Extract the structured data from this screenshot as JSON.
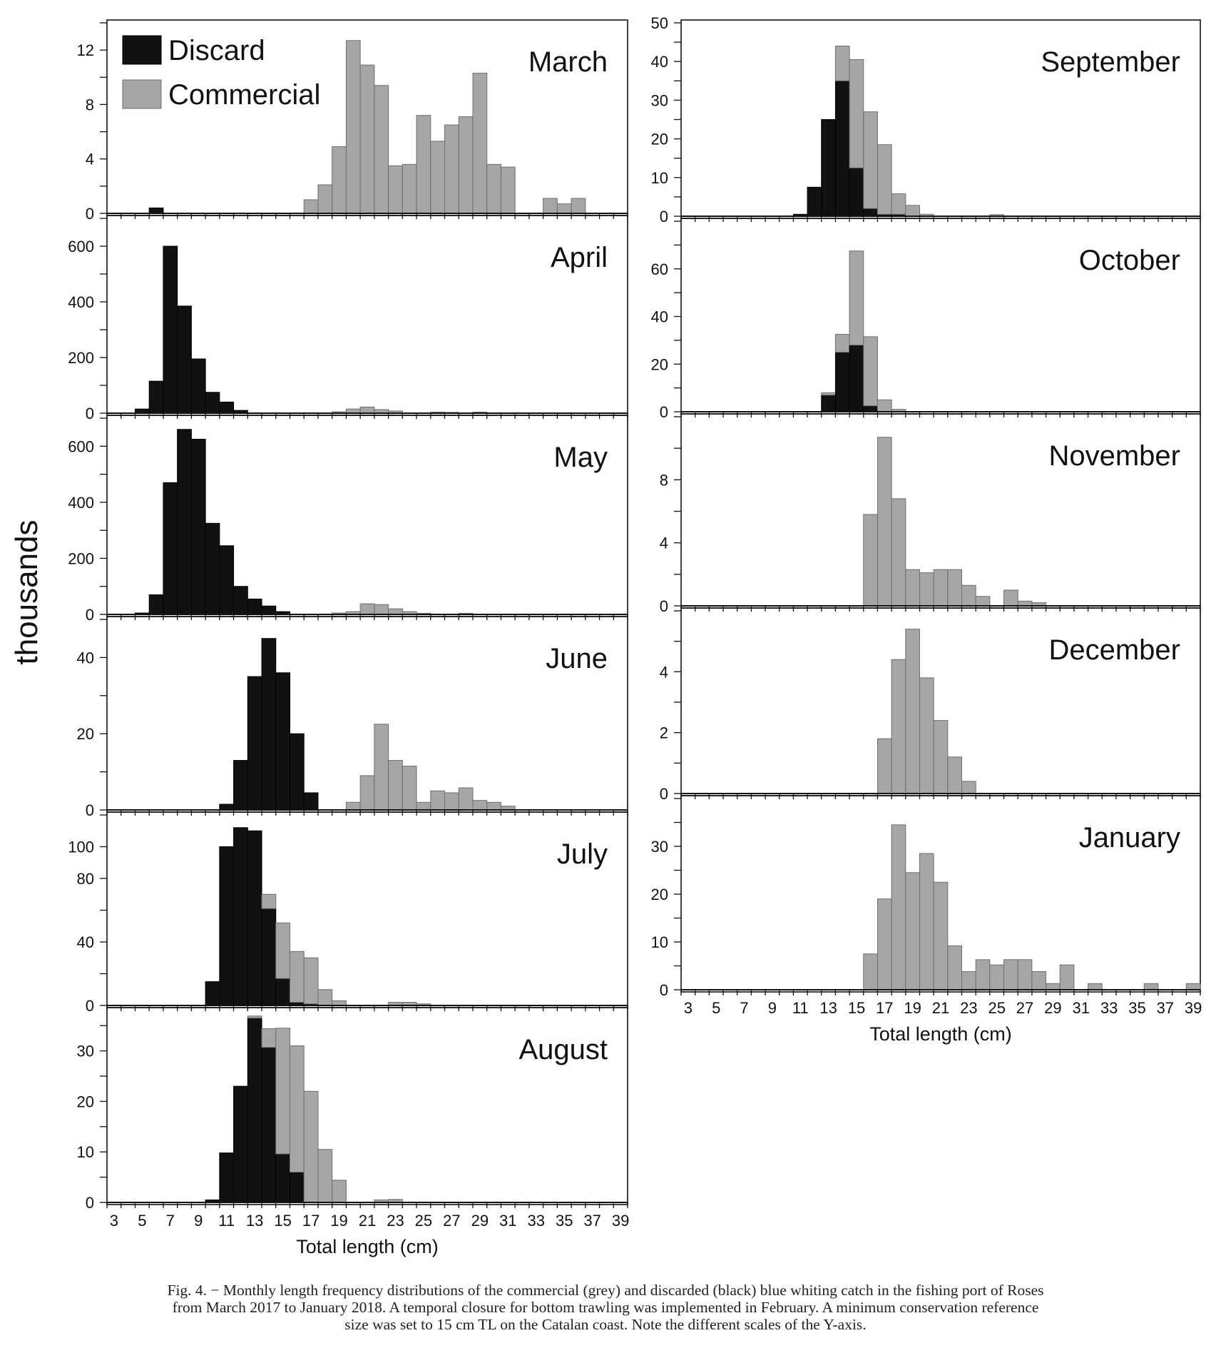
{
  "figure": {
    "ylabel": "thousands",
    "legend": [
      {
        "label": "Discard",
        "color": "#111111"
      },
      {
        "label": "Commercial",
        "color": "#a6a6a6"
      }
    ],
    "caption_lines": [
      "Fig. 4. − Monthly length frequency distributions of the commercial (grey) and discarded (black) blue whiting catch in the fishing port of Roses",
      "from March 2017 to January 2018. A temporal closure for bottom trawling was implemented in February. A minimum conservation reference",
      "size was set to 15 cm TL on the Catalan coast. Note the different scales of the Y-axis."
    ]
  },
  "chart_data": [
    {
      "type": "bar",
      "title": "March",
      "xlabel": "",
      "ylim": [
        0,
        14
      ],
      "yticks": [
        0,
        4,
        8,
        12
      ],
      "x_range": [
        3,
        39
      ],
      "series": [
        {
          "name": "Discard",
          "values": [
            {
              "x": 6,
              "y": 0.4
            }
          ]
        },
        {
          "name": "Commercial",
          "values": [
            {
              "x": 17,
              "y": 1.0
            },
            {
              "x": 18,
              "y": 2.1
            },
            {
              "x": 19,
              "y": 4.9
            },
            {
              "x": 20,
              "y": 12.7
            },
            {
              "x": 21,
              "y": 10.9
            },
            {
              "x": 22,
              "y": 9.4
            },
            {
              "x": 23,
              "y": 3.5
            },
            {
              "x": 24,
              "y": 3.6
            },
            {
              "x": 25,
              "y": 7.2
            },
            {
              "x": 26,
              "y": 5.3
            },
            {
              "x": 27,
              "y": 6.5
            },
            {
              "x": 28,
              "y": 7.1
            },
            {
              "x": 29,
              "y": 10.3
            },
            {
              "x": 30,
              "y": 3.6
            },
            {
              "x": 31,
              "y": 3.4
            },
            {
              "x": 34,
              "y": 1.1
            },
            {
              "x": 35,
              "y": 0.7
            },
            {
              "x": 36,
              "y": 1.1
            }
          ]
        }
      ]
    },
    {
      "type": "bar",
      "title": "April",
      "xlabel": "",
      "ylim": [
        0,
        700
      ],
      "yticks": [
        0,
        200,
        400,
        600
      ],
      "x_range": [
        3,
        39
      ],
      "series": [
        {
          "name": "Discard",
          "values": [
            {
              "x": 5,
              "y": 15
            },
            {
              "x": 6,
              "y": 115
            },
            {
              "x": 7,
              "y": 600
            },
            {
              "x": 8,
              "y": 385
            },
            {
              "x": 9,
              "y": 195
            },
            {
              "x": 10,
              "y": 75
            },
            {
              "x": 11,
              "y": 40
            },
            {
              "x": 12,
              "y": 10
            }
          ]
        },
        {
          "name": "Commercial",
          "values": [
            {
              "x": 19,
              "y": 5
            },
            {
              "x": 20,
              "y": 15
            },
            {
              "x": 21,
              "y": 22
            },
            {
              "x": 22,
              "y": 13
            },
            {
              "x": 23,
              "y": 8
            },
            {
              "x": 26,
              "y": 4
            },
            {
              "x": 27,
              "y": 3
            },
            {
              "x": 29,
              "y": 4
            }
          ]
        }
      ]
    },
    {
      "type": "bar",
      "title": "May",
      "xlabel": "",
      "ylim": [
        0,
        700
      ],
      "yticks": [
        0,
        200,
        400,
        600
      ],
      "x_range": [
        3,
        39
      ],
      "series": [
        {
          "name": "Discard",
          "values": [
            {
              "x": 5,
              "y": 5
            },
            {
              "x": 6,
              "y": 70
            },
            {
              "x": 7,
              "y": 470
            },
            {
              "x": 8,
              "y": 660
            },
            {
              "x": 9,
              "y": 625
            },
            {
              "x": 10,
              "y": 325
            },
            {
              "x": 11,
              "y": 245
            },
            {
              "x": 12,
              "y": 100
            },
            {
              "x": 13,
              "y": 55
            },
            {
              "x": 14,
              "y": 30
            },
            {
              "x": 15,
              "y": 10
            }
          ]
        },
        {
          "name": "Commercial",
          "values": [
            {
              "x": 19,
              "y": 5
            },
            {
              "x": 20,
              "y": 10
            },
            {
              "x": 21,
              "y": 38
            },
            {
              "x": 22,
              "y": 35
            },
            {
              "x": 23,
              "y": 20
            },
            {
              "x": 24,
              "y": 10
            },
            {
              "x": 25,
              "y": 4
            },
            {
              "x": 28,
              "y": 4
            }
          ]
        }
      ]
    },
    {
      "type": "bar",
      "title": "June",
      "xlabel": "",
      "ylim": [
        0,
        50
      ],
      "yticks": [
        0,
        20,
        40
      ],
      "x_range": [
        3,
        39
      ],
      "series": [
        {
          "name": "Discard",
          "values": [
            {
              "x": 11,
              "y": 1.5
            },
            {
              "x": 12,
              "y": 13
            },
            {
              "x": 13,
              "y": 35
            },
            {
              "x": 14,
              "y": 45
            },
            {
              "x": 15,
              "y": 36
            },
            {
              "x": 16,
              "y": 20
            },
            {
              "x": 17,
              "y": 4.5
            }
          ]
        },
        {
          "name": "Commercial",
          "values": [
            {
              "x": 20,
              "y": 2
            },
            {
              "x": 21,
              "y": 9
            },
            {
              "x": 22,
              "y": 22.5
            },
            {
              "x": 23,
              "y": 13
            },
            {
              "x": 24,
              "y": 11.5
            },
            {
              "x": 25,
              "y": 2
            },
            {
              "x": 26,
              "y": 5
            },
            {
              "x": 27,
              "y": 4.5
            },
            {
              "x": 28,
              "y": 5.8
            },
            {
              "x": 29,
              "y": 2.5
            },
            {
              "x": 30,
              "y": 2
            },
            {
              "x": 31,
              "y": 1
            }
          ]
        }
      ]
    },
    {
      "type": "bar",
      "title": "July",
      "xlabel": "",
      "ylim": [
        0,
        120
      ],
      "yticks": [
        0,
        40,
        80,
        100
      ],
      "x_range": [
        3,
        39
      ],
      "series": [
        {
          "name": "Discard",
          "values": [
            {
              "x": 10,
              "y": 15
            },
            {
              "x": 11,
              "y": 100
            },
            {
              "x": 12,
              "y": 112
            },
            {
              "x": 13,
              "y": 110
            },
            {
              "x": 14,
              "y": 61
            },
            {
              "x": 15,
              "y": 17
            },
            {
              "x": 16,
              "y": 2
            },
            {
              "x": 17,
              "y": 1
            }
          ]
        },
        {
          "name": "Commercial",
          "values": [
            {
              "x": 14,
              "y": 9
            },
            {
              "x": 15,
              "y": 35
            },
            {
              "x": 16,
              "y": 32
            },
            {
              "x": 17,
              "y": 29
            },
            {
              "x": 18,
              "y": 10
            },
            {
              "x": 19,
              "y": 3
            },
            {
              "x": 23,
              "y": 2
            },
            {
              "x": 24,
              "y": 2
            },
            {
              "x": 25,
              "y": 1
            }
          ]
        }
      ]
    },
    {
      "type": "bar",
      "title": "August",
      "xlabel": "Total length (cm)",
      "ylim": [
        0,
        38
      ],
      "yticks": [
        0,
        10,
        20,
        30
      ],
      "x_range": [
        3,
        39
      ],
      "xticks": [
        3,
        5,
        7,
        9,
        11,
        13,
        15,
        17,
        19,
        21,
        23,
        25,
        27,
        29,
        31,
        33,
        35,
        37,
        39
      ],
      "series": [
        {
          "name": "Discard",
          "values": [
            {
              "x": 10,
              "y": 0.5
            },
            {
              "x": 11,
              "y": 9.8
            },
            {
              "x": 12,
              "y": 23
            },
            {
              "x": 13,
              "y": 36.5
            },
            {
              "x": 14,
              "y": 30.7
            },
            {
              "x": 15,
              "y": 9.6
            },
            {
              "x": 16,
              "y": 6
            }
          ]
        },
        {
          "name": "Commercial",
          "values": [
            {
              "x": 13,
              "y": 0.4
            },
            {
              "x": 14,
              "y": 3.7
            },
            {
              "x": 15,
              "y": 24.9
            },
            {
              "x": 16,
              "y": 25
            },
            {
              "x": 17,
              "y": 22
            },
            {
              "x": 18,
              "y": 10.5
            },
            {
              "x": 19,
              "y": 4.4
            },
            {
              "x": 22,
              "y": 0.5
            },
            {
              "x": 23,
              "y": 0.6
            }
          ]
        }
      ]
    },
    {
      "type": "bar",
      "title": "September",
      "xlabel": "",
      "ylim": [
        0,
        50
      ],
      "yticks": [
        0,
        10,
        20,
        30,
        40,
        50
      ],
      "x_range": [
        3,
        39
      ],
      "series": [
        {
          "name": "Discard",
          "values": [
            {
              "x": 11,
              "y": 0.5
            },
            {
              "x": 12,
              "y": 7.5
            },
            {
              "x": 13,
              "y": 25
            },
            {
              "x": 14,
              "y": 35
            },
            {
              "x": 15,
              "y": 12.5
            },
            {
              "x": 16,
              "y": 2
            },
            {
              "x": 17,
              "y": 0.5
            },
            {
              "x": 18,
              "y": 0.5
            }
          ]
        },
        {
          "name": "Commercial",
          "values": [
            {
              "x": 14,
              "y": 9
            },
            {
              "x": 15,
              "y": 28
            },
            {
              "x": 16,
              "y": 25
            },
            {
              "x": 17,
              "y": 18
            },
            {
              "x": 18,
              "y": 5.3
            },
            {
              "x": 19,
              "y": 2.8
            },
            {
              "x": 20,
              "y": 0.5
            },
            {
              "x": 25,
              "y": 0.4
            }
          ]
        }
      ]
    },
    {
      "type": "bar",
      "title": "October",
      "xlabel": "",
      "ylim": [
        0,
        80
      ],
      "yticks": [
        0,
        20,
        40,
        60
      ],
      "x_range": [
        3,
        39
      ],
      "series": [
        {
          "name": "Discard",
          "values": [
            {
              "x": 13,
              "y": 7
            },
            {
              "x": 14,
              "y": 25
            },
            {
              "x": 15,
              "y": 28
            },
            {
              "x": 16,
              "y": 2.5
            }
          ]
        },
        {
          "name": "Commercial",
          "values": [
            {
              "x": 13,
              "y": 1
            },
            {
              "x": 14,
              "y": 7.5
            },
            {
              "x": 15,
              "y": 39.5
            },
            {
              "x": 16,
              "y": 29
            },
            {
              "x": 17,
              "y": 5
            },
            {
              "x": 18,
              "y": 1
            }
          ]
        }
      ]
    },
    {
      "type": "bar",
      "title": "November",
      "xlabel": "",
      "ylim": [
        0,
        12
      ],
      "yticks": [
        0,
        4,
        8
      ],
      "x_range": [
        3,
        39
      ],
      "series": [
        {
          "name": "Discard",
          "values": []
        },
        {
          "name": "Commercial",
          "values": [
            {
              "x": 16,
              "y": 5.8
            },
            {
              "x": 17,
              "y": 10.7
            },
            {
              "x": 18,
              "y": 6.8
            },
            {
              "x": 19,
              "y": 2.3
            },
            {
              "x": 20,
              "y": 2.1
            },
            {
              "x": 21,
              "y": 2.3
            },
            {
              "x": 22,
              "y": 2.3
            },
            {
              "x": 23,
              "y": 1.3
            },
            {
              "x": 24,
              "y": 0.6
            },
            {
              "x": 26,
              "y": 1.0
            },
            {
              "x": 27,
              "y": 0.3
            },
            {
              "x": 28,
              "y": 0.2
            }
          ]
        }
      ]
    },
    {
      "type": "bar",
      "title": "December",
      "xlabel": "",
      "ylim": [
        0,
        6
      ],
      "yticks": [
        0,
        2,
        4
      ],
      "x_range": [
        3,
        39
      ],
      "series": [
        {
          "name": "Discard",
          "values": []
        },
        {
          "name": "Commercial",
          "values": [
            {
              "x": 17,
              "y": 1.8
            },
            {
              "x": 18,
              "y": 4.4
            },
            {
              "x": 19,
              "y": 5.4
            },
            {
              "x": 20,
              "y": 3.8
            },
            {
              "x": 21,
              "y": 2.4
            },
            {
              "x": 22,
              "y": 1.2
            },
            {
              "x": 23,
              "y": 0.4
            }
          ]
        }
      ]
    },
    {
      "type": "bar",
      "title": "January",
      "xlabel": "Total length (cm)",
      "ylim": [
        0,
        40
      ],
      "yticks": [
        0,
        10,
        20,
        30
      ],
      "x_range": [
        3,
        39
      ],
      "xticks": [
        3,
        5,
        7,
        9,
        11,
        13,
        15,
        17,
        19,
        21,
        23,
        25,
        27,
        29,
        31,
        33,
        35,
        37,
        39
      ],
      "series": [
        {
          "name": "Discard",
          "values": []
        },
        {
          "name": "Commercial",
          "values": [
            {
              "x": 16,
              "y": 7.5
            },
            {
              "x": 17,
              "y": 19
            },
            {
              "x": 18,
              "y": 34.5
            },
            {
              "x": 19,
              "y": 24.5
            },
            {
              "x": 20,
              "y": 28.5
            },
            {
              "x": 21,
              "y": 22.5
            },
            {
              "x": 22,
              "y": 9.2
            },
            {
              "x": 23,
              "y": 3.8
            },
            {
              "x": 24,
              "y": 6.3
            },
            {
              "x": 25,
              "y": 5.2
            },
            {
              "x": 26,
              "y": 6.3
            },
            {
              "x": 27,
              "y": 6.3
            },
            {
              "x": 28,
              "y": 3.8
            },
            {
              "x": 29,
              "y": 1.3
            },
            {
              "x": 30,
              "y": 5.2
            },
            {
              "x": 32,
              "y": 1.3
            },
            {
              "x": 36,
              "y": 1.3
            },
            {
              "x": 39,
              "y": 1.3
            }
          ]
        }
      ]
    }
  ]
}
